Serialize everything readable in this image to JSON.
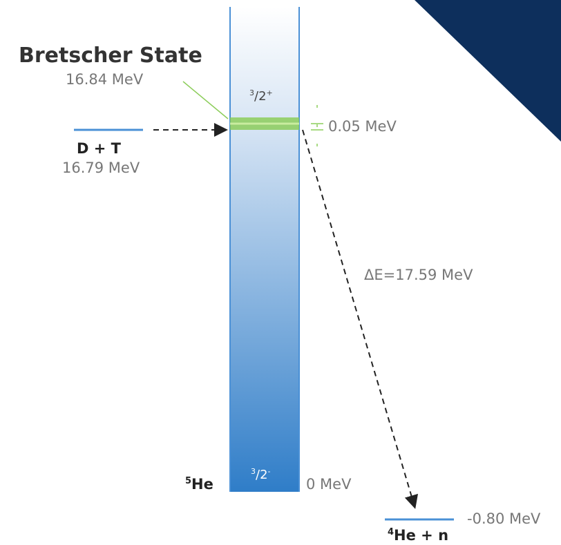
{
  "title": "Bretscher State",
  "levels": {
    "bretscher": {
      "energy": "16.84 MeV",
      "spin": {
        "num": "3",
        "den": "/2",
        "parity": "+"
      },
      "width": "0.05 MeV"
    },
    "entrance": {
      "label": "D + T",
      "energy": "16.79 MeV"
    },
    "ground": {
      "nucleus": {
        "mass": "5",
        "symbol": "He"
      },
      "spin": {
        "num": "3",
        "den": "/2",
        "parity": "-"
      },
      "energy": "0 MeV"
    },
    "exit": {
      "products": {
        "mass": "4",
        "rest": "He + n"
      },
      "energy": "-0.80 MeV"
    }
  },
  "transition": "ΔE=17.59 MeV"
}
